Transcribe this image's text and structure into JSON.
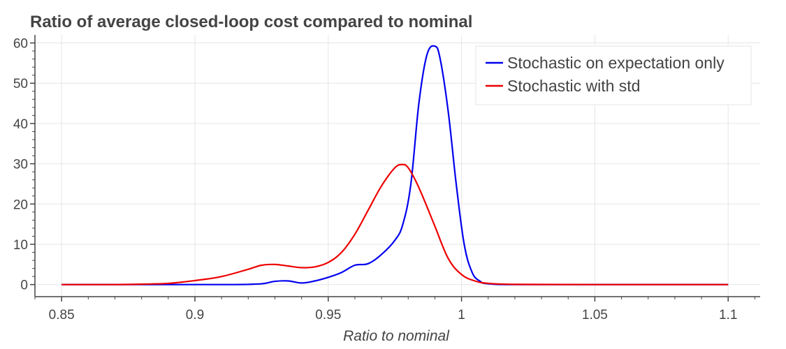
{
  "chart_data": {
    "type": "line",
    "title": "Ratio of average closed-loop cost compared to nominal",
    "xlabel": "Ratio to nominal",
    "ylabel": "",
    "xlim": [
      0.84,
      1.112
    ],
    "ylim": [
      -3,
      62
    ],
    "x_ticks": [
      0.85,
      0.9,
      0.95,
      1.0,
      1.05,
      1.1
    ],
    "x_tick_labels": [
      "0.85",
      "0.9",
      "0.95",
      "1",
      "1.05",
      "1.1"
    ],
    "y_ticks": [
      0,
      10,
      20,
      30,
      40,
      50,
      60
    ],
    "y_tick_labels": [
      "0",
      "10",
      "20",
      "30",
      "40",
      "50",
      "60"
    ],
    "grid": true,
    "legend_position": "top-right",
    "series": [
      {
        "name": "Stochastic on expectation only",
        "color": "#0000ee",
        "x": [
          0.85,
          0.88,
          0.9,
          0.915,
          0.925,
          0.93,
          0.935,
          0.94,
          0.945,
          0.95,
          0.955,
          0.96,
          0.965,
          0.97,
          0.975,
          0.978,
          0.981,
          0.984,
          0.987,
          0.99,
          0.992,
          0.995,
          0.998,
          1.001,
          1.004,
          1.007,
          1.01,
          1.02,
          1.05,
          1.1
        ],
        "y": [
          0,
          0,
          0,
          0,
          0.2,
          0.8,
          0.9,
          0.4,
          0.9,
          1.8,
          3.0,
          4.8,
          5.2,
          7.5,
          11.0,
          15.0,
          25.0,
          45.0,
          57.0,
          59.2,
          56.0,
          43.0,
          25.0,
          10.0,
          3.0,
          0.8,
          0.2,
          0,
          0,
          0
        ]
      },
      {
        "name": "Stochastic with std",
        "color": "#ee0000",
        "x": [
          0.85,
          0.87,
          0.88,
          0.89,
          0.9,
          0.91,
          0.92,
          0.925,
          0.93,
          0.935,
          0.94,
          0.945,
          0.95,
          0.955,
          0.96,
          0.965,
          0.97,
          0.975,
          0.978,
          0.98,
          0.983,
          0.986,
          0.99,
          0.995,
          1.0,
          1.005,
          1.01,
          1.02,
          1.05,
          1.1
        ],
        "y": [
          0,
          0,
          0.1,
          0.3,
          1.0,
          2.0,
          3.8,
          4.8,
          5.0,
          4.6,
          4.2,
          4.4,
          5.5,
          8.0,
          12.5,
          18.5,
          24.5,
          29.0,
          29.8,
          29.0,
          25.5,
          21.0,
          14.5,
          6.5,
          2.5,
          0.9,
          0.3,
          0.05,
          0,
          0
        ]
      }
    ]
  }
}
